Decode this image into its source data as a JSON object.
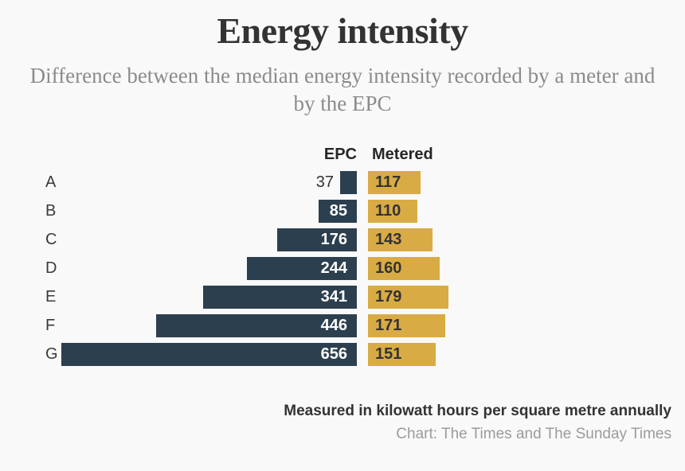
{
  "colors": {
    "background": "#f9f9f9",
    "title": "#333333",
    "subtitle": "#8b8b8e",
    "epc_bar": "#2c3f4f",
    "metered_bar": "#d9ab45",
    "category_label": "#3a3a3a",
    "value_on_epc": "#ffffff",
    "value_on_metered": "#333333",
    "note": "#333333",
    "credit": "#9b9b9b"
  },
  "header": {
    "title": "Energy intensity",
    "subtitle": "Difference between the median energy intensity recorded by a meter and by the EPC"
  },
  "chart_data": {
    "type": "bar",
    "orientation": "horizontal",
    "layout": "paired-opposed-columns",
    "title": "Energy intensity",
    "subtitle": "Difference between the median energy intensity recorded by a meter and by the EPC",
    "categories": [
      "A",
      "B",
      "C",
      "D",
      "E",
      "F",
      "G"
    ],
    "series": [
      {
        "name": "EPC",
        "values": [
          37,
          85,
          176,
          244,
          341,
          446,
          656
        ],
        "color": "#2c3f4f",
        "value_label_color": "#ffffff",
        "bar_alignment": "right"
      },
      {
        "name": "Metered",
        "values": [
          117,
          110,
          143,
          160,
          179,
          171,
          151
        ],
        "color": "#d9ab45",
        "value_label_color": "#333333",
        "bar_alignment": "left"
      }
    ],
    "xlabel": "",
    "ylabel": "",
    "xlim": [
      0,
      656
    ],
    "grid": false,
    "value_labels": true,
    "legend_position": "column-headers",
    "unit_note": "Measured in kilowatt hours per square metre annually"
  },
  "footer": {
    "note": "Measured in kilowatt hours per square metre annually",
    "credit": "Chart: The Times and The Sunday Times"
  }
}
